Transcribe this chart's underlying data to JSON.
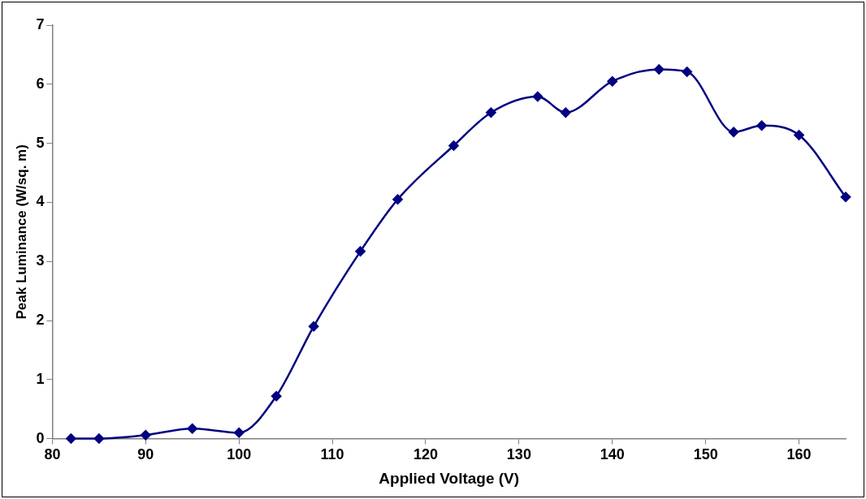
{
  "chart_data": {
    "type": "line",
    "xlabel": "Applied Voltage (V)",
    "ylabel": "Peak Luminance (W/sq. m)",
    "x": [
      82,
      85,
      90,
      95,
      100,
      104,
      108,
      113,
      117,
      123,
      127,
      132,
      135,
      140,
      145,
      148,
      153,
      156,
      160,
      165
    ],
    "series": [
      {
        "color": "#000080",
        "values": [
          0,
          0,
          0.06,
          0.17,
          0.1,
          0.72,
          1.9,
          3.17,
          4.05,
          4.96,
          5.52,
          5.79,
          5.52,
          6.05,
          6.25,
          6.21,
          5.19,
          5.3,
          5.14,
          4.09
        ]
      }
    ],
    "xlim": [
      80,
      165
    ],
    "xticks": [
      80,
      90,
      100,
      110,
      120,
      130,
      140,
      150,
      160
    ],
    "ylim": [
      0,
      7
    ],
    "yticks": [
      0,
      1,
      2,
      3,
      4,
      5,
      6,
      7
    ],
    "grid": false,
    "legend": false,
    "marker": "diamond",
    "line_style": "solid"
  }
}
